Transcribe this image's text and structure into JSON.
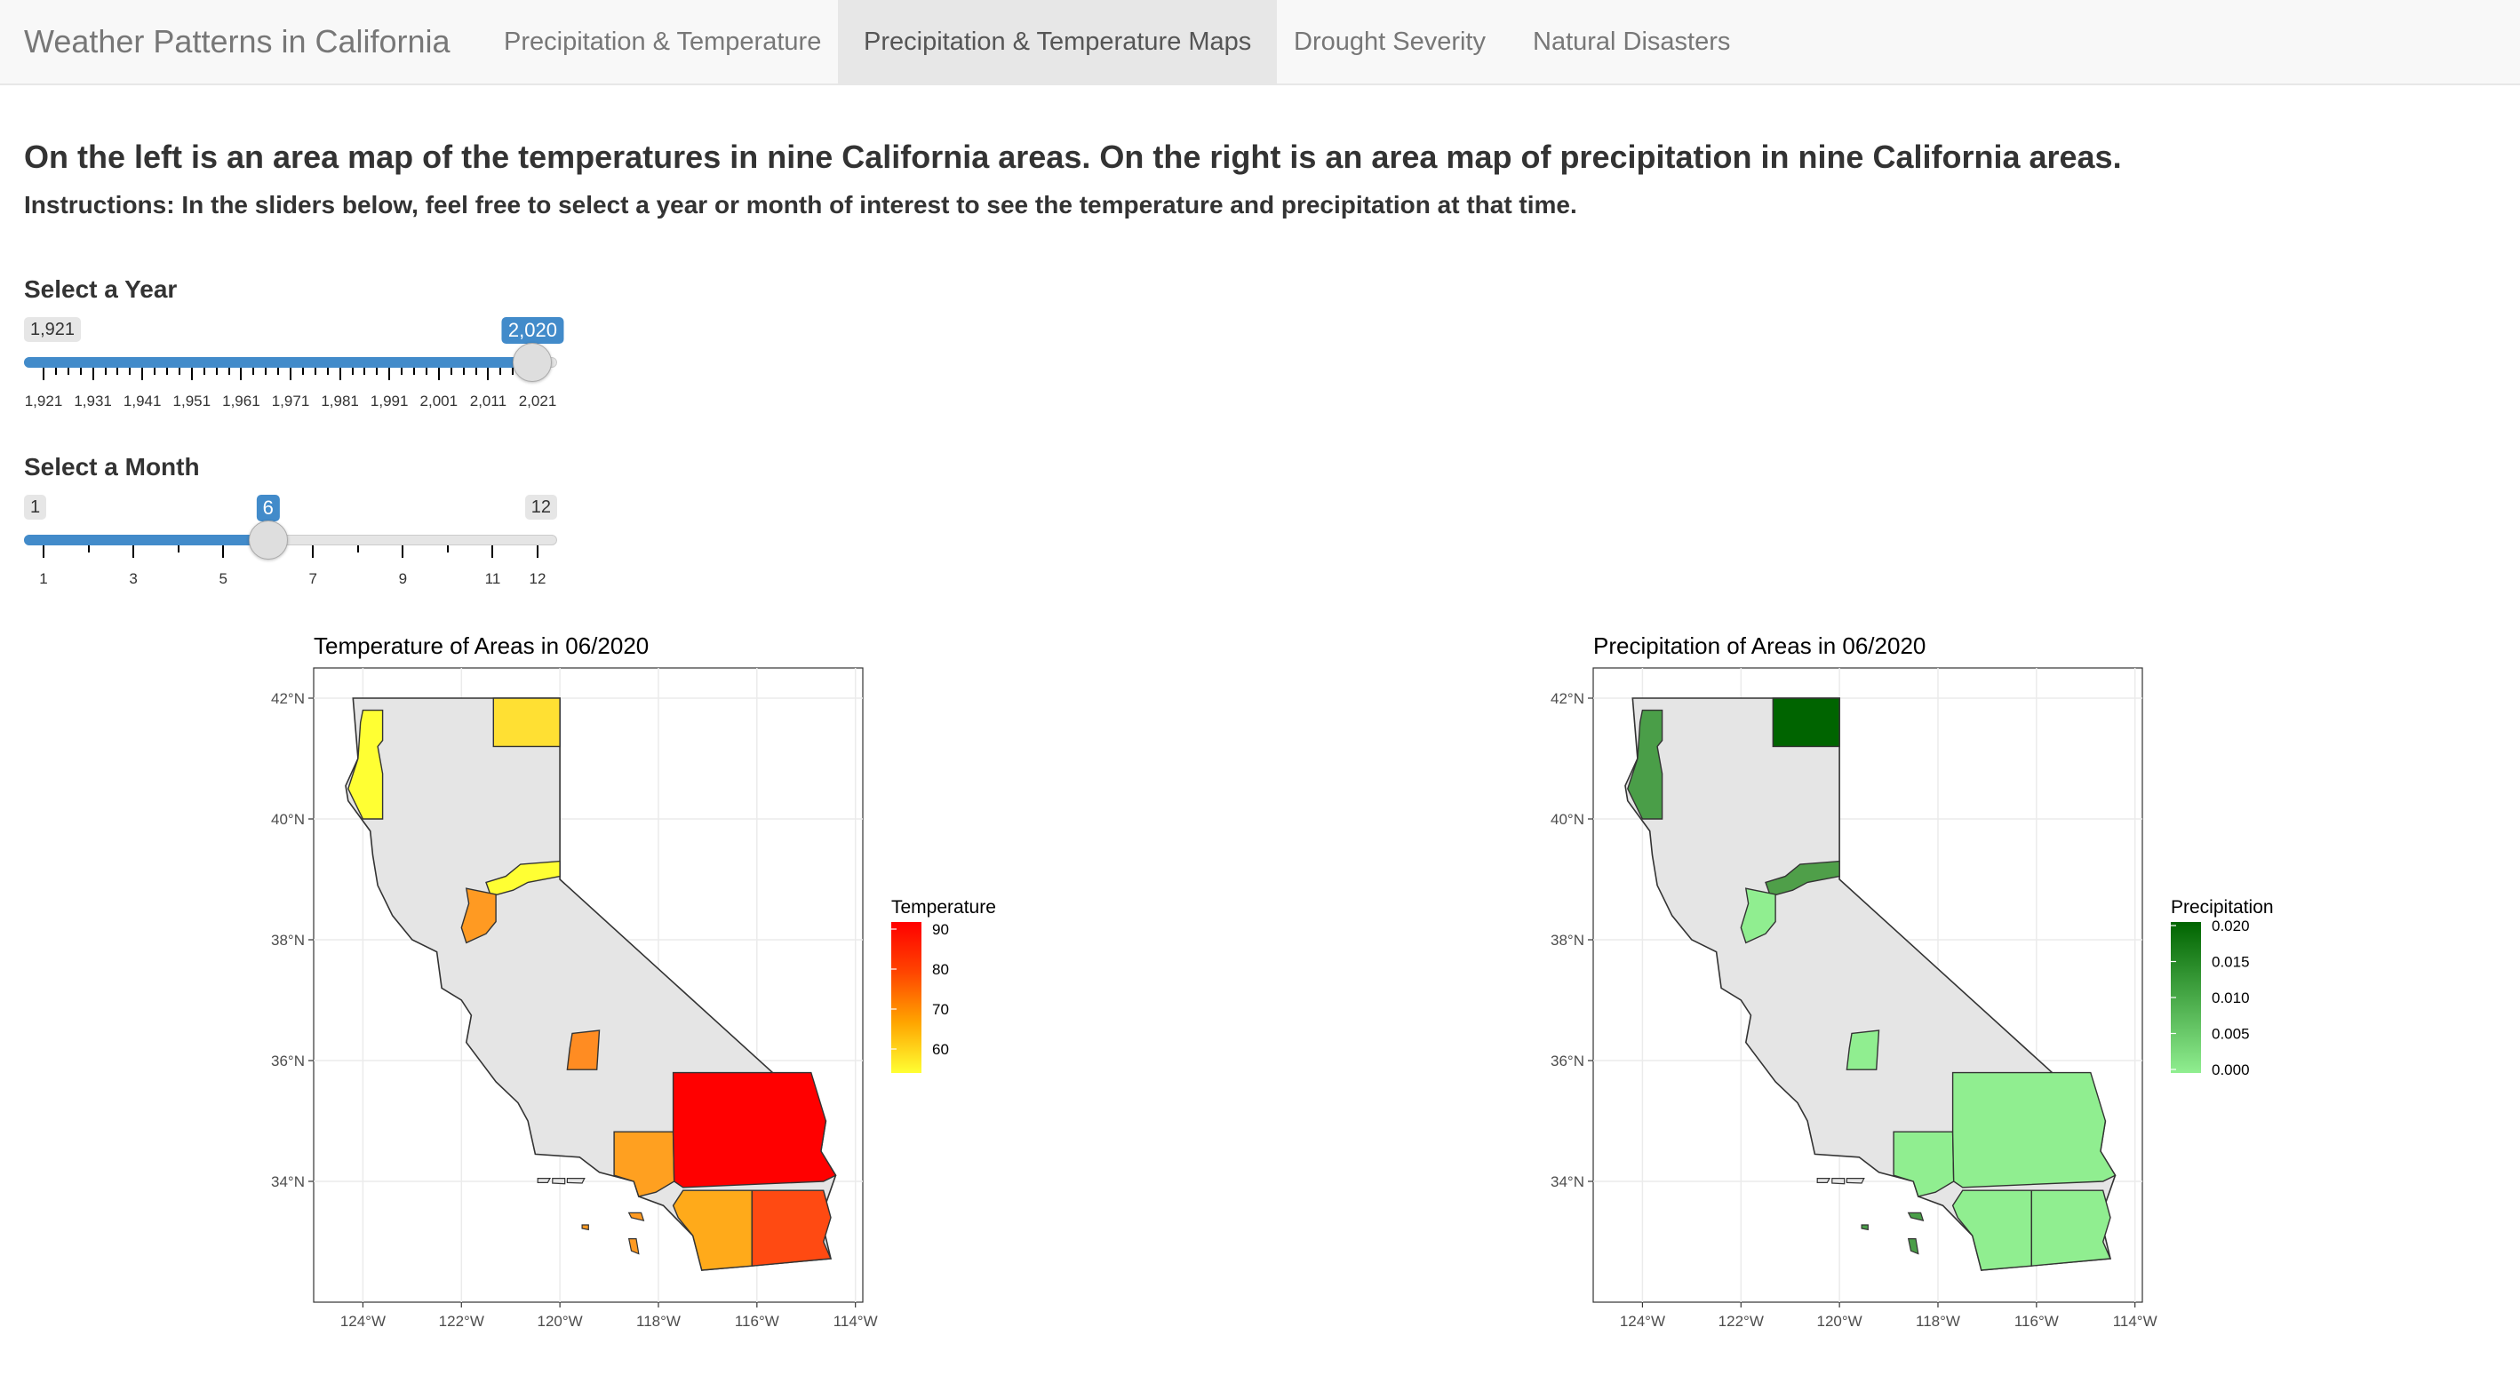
{
  "navbar": {
    "brand": "Weather Patterns in California",
    "tabs": [
      {
        "label": "Precipitation & Temperature",
        "active": false
      },
      {
        "label": "Precipitation & Temperature Maps",
        "active": true
      },
      {
        "label": "Drought Severity",
        "active": false
      },
      {
        "label": "Natural Disasters",
        "active": false
      }
    ]
  },
  "main": {
    "heading": "On the left is an area map of the temperatures in nine California areas. On the right is an area map of precipitation in nine California areas.",
    "instructions": "Instructions: In the sliders below, feel free to select a year or month of interest to see the temperature and precipitation at that time."
  },
  "year_slider": {
    "label": "Select a Year",
    "min": 1921,
    "max": 2021,
    "value": 2020,
    "min_label": "1,921",
    "value_label": "2,020",
    "ticks": [
      "1,921",
      "1,931",
      "1,941",
      "1,951",
      "1,961",
      "1,971",
      "1,981",
      "1,991",
      "2,001",
      "2,011",
      "2,021"
    ]
  },
  "month_slider": {
    "label": "Select a Month",
    "min": 1,
    "max": 12,
    "value": 6,
    "min_label": "1",
    "max_label": "12",
    "value_label": "6",
    "ticks": [
      "1",
      "3",
      "5",
      "7",
      "9",
      "11",
      "12"
    ]
  },
  "temperature_map": {
    "title": "Temperature of Areas in 06/2020",
    "legend_title": "Temperature",
    "legend_labels": [
      "90",
      "80",
      "70",
      "60"
    ],
    "gradient": [
      "#ffff33",
      "#ffa500",
      "#ff4500",
      "#ff0000"
    ],
    "lat_labels": [
      "42°N",
      "40°N",
      "38°N",
      "36°N",
      "34°N"
    ],
    "lon_labels": [
      "124°W",
      "122°W",
      "120°W",
      "118°W",
      "116°W",
      "114°W"
    ]
  },
  "precipitation_map": {
    "title": "Precipitation of Areas in 06/2020",
    "legend_title": "Precipitation",
    "legend_labels": [
      "0.020",
      "0.015",
      "0.010",
      "0.005",
      "0.000"
    ],
    "gradient": [
      "#90ee90",
      "#006400"
    ],
    "lat_labels": [
      "42°N",
      "40°N",
      "38°N",
      "36°N",
      "34°N"
    ],
    "lon_labels": [
      "124°W",
      "122°W",
      "120°W",
      "118°W",
      "116°W",
      "114°W"
    ]
  },
  "colors": {
    "state_fill": "#e5e5e5",
    "panel_border": "#333333",
    "grid": "#ebebeb",
    "slider_accent": "#428bca",
    "temp_areas": {
      "north_coast": "#ffff33",
      "north_east": "#ffe033",
      "sacramento": "#ffff33",
      "bay_delta": "#ff9a22",
      "san_joaquin": "#ff8c22",
      "central_coast": "#ffa020",
      "south_desert": "#ff0000",
      "south_coast": "#ffaa1a",
      "imperial": "#ff4a12",
      "islands": "#ff9a22"
    },
    "precip_areas": {
      "north_coast": "#4a9e48",
      "north_east": "#006400",
      "sacramento": "#4f9f49",
      "bay_delta": "#90ee90",
      "san_joaquin": "#90ee90",
      "central_coast": "#90ee90",
      "south_desert": "#90ee90",
      "south_coast": "#90ee90",
      "imperial": "#90ee90",
      "islands": "#4a9e48"
    }
  }
}
